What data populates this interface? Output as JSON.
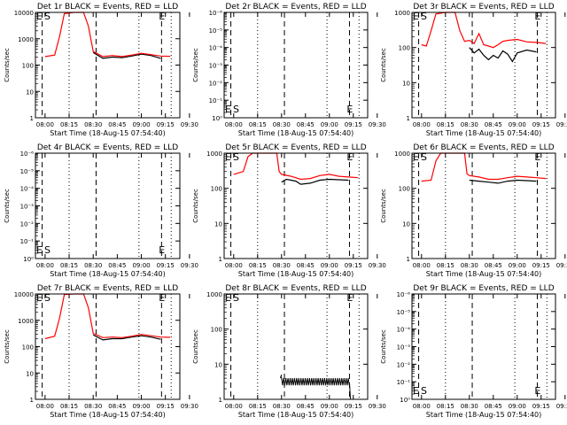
{
  "chart_data": [
    {
      "type": "line",
      "title": "Det 1r BLACK = Events, RED = LLD",
      "ylabel": "Counts/sec",
      "xlabel": "Start Time (18-Aug-15 07:54:40)",
      "yscale": "log",
      "ylim": [
        1,
        10000
      ],
      "yticks": [
        "1",
        "10",
        "100",
        "1000",
        "10000"
      ],
      "xticks": [
        "08:00",
        "08:15",
        "08:30",
        "08:45",
        "09:00",
        "09:15",
        "09:30"
      ],
      "markers": {
        "E_left": "E",
        "S": "S",
        "E_right": "E"
      },
      "shape": "A",
      "series": [
        {
          "color": "#000000",
          "values": [
            [
              10,
              300
            ],
            [
              12,
              180
            ],
            [
              14,
              200
            ],
            [
              16,
              190
            ],
            [
              18,
              220
            ],
            [
              20,
              260
            ],
            [
              22,
              230
            ],
            [
              24,
              180
            ]
          ]
        },
        {
          "color": "#ff0000",
          "values": [
            [
              0,
              210
            ],
            [
              2,
              240
            ],
            [
              3,
              1200
            ],
            [
              4,
              9000
            ],
            [
              6,
              14000
            ],
            [
              8,
              12000
            ],
            [
              9,
              3000
            ],
            [
              10,
              330
            ],
            [
              12,
              210
            ],
            [
              14,
              230
            ],
            [
              16,
              210
            ],
            [
              18,
              240
            ],
            [
              20,
              280
            ],
            [
              22,
              250
            ],
            [
              24,
              220
            ],
            [
              26,
              215
            ]
          ]
        }
      ]
    },
    {
      "type": "line",
      "title": "Det 2r BLACK = Events, RED = LLD",
      "ylabel": "Counts/sec",
      "xlabel": "Start Time (18-Aug-15 07:54:40)",
      "yscale": "log",
      "ylim": [
        1e-06,
        1
      ],
      "yticks": [
        "10⁰",
        "10⁻¹",
        "10⁻²",
        "10⁻³",
        "10⁻⁴",
        "10⁻⁵",
        "10⁻⁶"
      ],
      "xticks": [
        "08:00",
        "08:15",
        "08:30",
        "08:45",
        "09:00",
        "09:15",
        "09:30"
      ],
      "markers": {
        "E_left": "E",
        "S": "S",
        "E_right": "E"
      },
      "series": []
    },
    {
      "type": "line",
      "title": "Det 3r BLACK = Events, RED = LLD",
      "ylabel": "Counts/sec",
      "xlabel": "Start Time (18-Aug-15 07:54:40)",
      "yscale": "log",
      "ylim": [
        1,
        1000
      ],
      "yticks": [
        "1",
        "10",
        "100",
        "1000"
      ],
      "xticks": [
        "08:00",
        "08:15",
        "08:30",
        "08:45",
        "09:00",
        "09:15",
        "09:30"
      ],
      "markers": {
        "E_left": "E",
        "S": "S",
        "E_right": "E"
      },
      "shape": "C",
      "series": [
        {
          "color": "#000000",
          "values": [
            [
              10,
              100
            ],
            [
              11,
              70
            ],
            [
              12,
              90
            ],
            [
              13,
              60
            ],
            [
              14,
              45
            ],
            [
              15,
              60
            ],
            [
              16,
              50
            ],
            [
              17,
              80
            ],
            [
              18,
              65
            ],
            [
              19,
              40
            ],
            [
              20,
              70
            ],
            [
              22,
              85
            ],
            [
              24,
              75
            ]
          ]
        },
        {
          "color": "#ff0000",
          "values": [
            [
              0,
              120
            ],
            [
              1,
              110
            ],
            [
              2,
              300
            ],
            [
              3,
              900
            ],
            [
              5,
              1300
            ],
            [
              7,
              1200
            ],
            [
              8,
              300
            ],
            [
              9,
              150
            ],
            [
              10,
              160
            ],
            [
              11,
              130
            ],
            [
              12,
              250
            ],
            [
              13,
              120
            ],
            [
              14,
              110
            ],
            [
              15,
              100
            ],
            [
              16,
              120
            ],
            [
              17,
              150
            ],
            [
              18,
              160
            ],
            [
              20,
              170
            ],
            [
              22,
              145
            ],
            [
              24,
              140
            ],
            [
              26,
              130
            ]
          ]
        }
      ]
    },
    {
      "type": "line",
      "title": "Det 4r BLACK = Events, RED = LLD",
      "ylabel": "Counts/sec",
      "xlabel": "Start Time (18-Aug-15 07:54:40)",
      "yscale": "log",
      "ylim": [
        1e-06,
        1
      ],
      "yticks": [
        "10⁰",
        "10⁻¹",
        "10⁻²",
        "10⁻³",
        "10⁻⁴",
        "10⁻⁵",
        "10⁻⁶"
      ],
      "xticks": [
        "08:00",
        "08:15",
        "08:30",
        "08:45",
        "09:00",
        "09:15",
        "09:30"
      ],
      "markers": {
        "E_left": "E",
        "S": "S",
        "E_right": "E"
      },
      "series": []
    },
    {
      "type": "line",
      "title": "Det 5r BLACK = Events, RED = LLD",
      "ylabel": "Counts/sec",
      "xlabel": "Start Time (18-Aug-15 07:54:40)",
      "yscale": "log",
      "ylim": [
        1,
        1000
      ],
      "yticks": [
        "1",
        "10",
        "100",
        "1000"
      ],
      "xticks": [
        "08:00",
        "08:15",
        "08:30",
        "08:45",
        "09:00",
        "09:15",
        "09:30"
      ],
      "markers": {
        "E_left": "E",
        "S": "S",
        "E_right": "E"
      },
      "shape": "B",
      "series": [
        {
          "color": "#000000",
          "values": [
            [
              10,
              150
            ],
            [
              11,
              180
            ],
            [
              12,
              170
            ],
            [
              13,
              160
            ],
            [
              14,
              130
            ],
            [
              16,
              140
            ],
            [
              18,
              170
            ],
            [
              20,
              180
            ],
            [
              22,
              175
            ],
            [
              24,
              170
            ]
          ]
        },
        {
          "color": "#ff0000",
          "values": [
            [
              0,
              250
            ],
            [
              2,
              300
            ],
            [
              3,
              800
            ],
            [
              4,
              1100
            ],
            [
              9,
              1100
            ],
            [
              9.5,
              300
            ],
            [
              10,
              250
            ],
            [
              12,
              220
            ],
            [
              14,
              180
            ],
            [
              16,
              190
            ],
            [
              18,
              230
            ],
            [
              20,
              250
            ],
            [
              22,
              220
            ],
            [
              24,
              210
            ],
            [
              26,
              200
            ]
          ]
        }
      ]
    },
    {
      "type": "line",
      "title": "Det 6r BLACK = Events, RED = LLD",
      "ylabel": "Counts/sec",
      "xlabel": "Start Time (18-Aug-15 07:54:40)",
      "yscale": "log",
      "ylim": [
        1,
        1000
      ],
      "yticks": [
        "1",
        "10",
        "100",
        "1000"
      ],
      "xticks": [
        "08:00",
        "08:15",
        "08:30",
        "08:45",
        "09:00",
        "09:15",
        "09:30"
      ],
      "markers": {
        "E_left": "E",
        "S": "S",
        "E_right": "E"
      },
      "shape": "B",
      "series": [
        {
          "color": "#000000",
          "values": [
            [
              10,
              170
            ],
            [
              12,
              160
            ],
            [
              14,
              150
            ],
            [
              16,
              140
            ],
            [
              18,
              160
            ],
            [
              20,
              170
            ],
            [
              22,
              165
            ],
            [
              24,
              160
            ]
          ]
        },
        {
          "color": "#ff0000",
          "values": [
            [
              0,
              160
            ],
            [
              2,
              170
            ],
            [
              3,
              600
            ],
            [
              4,
              1100
            ],
            [
              9,
              1100
            ],
            [
              9.5,
              260
            ],
            [
              10,
              230
            ],
            [
              12,
              210
            ],
            [
              14,
              180
            ],
            [
              16,
              180
            ],
            [
              18,
              200
            ],
            [
              20,
              220
            ],
            [
              22,
              210
            ],
            [
              24,
              200
            ],
            [
              26,
              190
            ]
          ]
        }
      ]
    },
    {
      "type": "line",
      "title": "Det 7r BLACK = Events, RED = LLD",
      "ylabel": "Counts/sec",
      "xlabel": "Start Time (18-Aug-15 07:54:40)",
      "yscale": "log",
      "ylim": [
        1,
        10000
      ],
      "yticks": [
        "1",
        "10",
        "100",
        "1000",
        "10000"
      ],
      "xticks": [
        "08:00",
        "08:15",
        "08:30",
        "08:45",
        "09:00",
        "09:15",
        "09:30"
      ],
      "markers": {
        "E_left": "E",
        "S": "S",
        "E_right": "E"
      },
      "shape": "A",
      "series": [
        {
          "color": "#000000",
          "values": [
            [
              10,
              280
            ],
            [
              12,
              180
            ],
            [
              14,
              200
            ],
            [
              16,
              200
            ],
            [
              18,
              230
            ],
            [
              20,
              260
            ],
            [
              22,
              230
            ],
            [
              24,
              190
            ]
          ]
        },
        {
          "color": "#ff0000",
          "values": [
            [
              0,
              200
            ],
            [
              2,
              250
            ],
            [
              3,
              1200
            ],
            [
              4,
              9500
            ],
            [
              6,
              14000
            ],
            [
              8,
              12000
            ],
            [
              9,
              3000
            ],
            [
              10,
              320
            ],
            [
              12,
              220
            ],
            [
              14,
              230
            ],
            [
              16,
              220
            ],
            [
              18,
              250
            ],
            [
              20,
              290
            ],
            [
              22,
              260
            ],
            [
              24,
              230
            ],
            [
              26,
              225
            ]
          ]
        }
      ]
    },
    {
      "type": "line",
      "title": "Det 8r BLACK = Events, RED = LLD",
      "ylabel": "Counts/sec",
      "xlabel": "Start Time (18-Aug-15 07:54:40)",
      "yscale": "log",
      "ylim": [
        1,
        1000
      ],
      "yticks": [
        "1",
        "10",
        "100",
        "1000"
      ],
      "xticks": [
        "08:00",
        "08:15",
        "08:30",
        "08:45",
        "09:00",
        "09:15",
        "09:30"
      ],
      "markers": {
        "E_left": "E",
        "S": "S",
        "E_right": "E"
      },
      "shape": "D",
      "series": [
        {
          "color": "#000000",
          "values": [
            [
              9.8,
              4
            ],
            [
              10,
              5
            ]
          ]
        }
      ]
    },
    {
      "type": "line",
      "title": "Det 9r BLACK = Events, RED = LLD",
      "ylabel": "Counts/sec",
      "xlabel": "Start Time (18-Aug-15 07:54:40)",
      "yscale": "log",
      "ylim": [
        1e-06,
        1
      ],
      "yticks": [
        "10⁰",
        "10⁻¹",
        "10⁻²",
        "10⁻³",
        "10⁻⁴",
        "10⁻⁵",
        "10⁻⁶"
      ],
      "xticks": [
        "08:00",
        "08:15",
        "08:30",
        "08:45",
        "09:00",
        "09:15",
        "09:30"
      ],
      "markers": {
        "E_left": "E",
        "S": "S",
        "E_right": "E"
      },
      "series": []
    }
  ]
}
